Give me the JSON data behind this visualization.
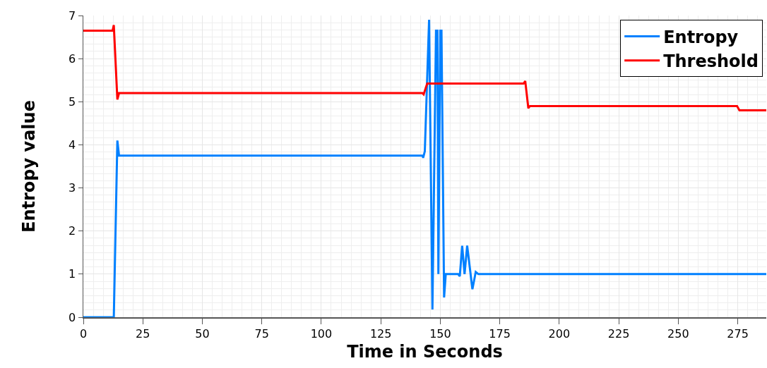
{
  "chart_data": {
    "type": "line",
    "xlabel": "Time in Seconds",
    "ylabel": "Entropy value",
    "series": [
      {
        "name": "Entropy",
        "color": "#0080ff",
        "x": [
          0,
          12.8,
          14.3,
          15,
          142.5,
          142.8,
          143.5,
          145.3,
          146.7,
          148.2,
          148.8,
          149.2,
          150,
          150.5,
          151.6,
          152.3,
          157.5,
          158.2,
          159.2,
          160.2,
          161.3,
          163.5,
          164.9,
          166,
          287
        ],
        "values": [
          0,
          0,
          4.1,
          3.75,
          3.75,
          3.7,
          3.85,
          6.9,
          0.18,
          6.65,
          6.65,
          1.0,
          6.65,
          6.65,
          0.46,
          1.0,
          1.0,
          0.95,
          1.66,
          1.0,
          1.66,
          0.65,
          1.05,
          1.0,
          1.0
        ]
      },
      {
        "name": "Threshold",
        "color": "#ff0000",
        "x": [
          0,
          12.3,
          12.8,
          14.3,
          15,
          142.5,
          143,
          144.5,
          145,
          185,
          185.7,
          187,
          187.7,
          274,
          274.7,
          275.7,
          287
        ],
        "values": [
          6.65,
          6.65,
          6.78,
          5.05,
          5.2,
          5.2,
          5.17,
          5.42,
          5.42,
          5.42,
          5.48,
          4.85,
          4.9,
          4.9,
          4.9,
          4.8,
          4.8
        ]
      }
    ],
    "xlim": [
      0,
      287
    ],
    "xticks": [
      0,
      25,
      50,
      75,
      100,
      125,
      150,
      175,
      200,
      225,
      250,
      275
    ],
    "ylim": [
      0,
      7
    ],
    "yticks": [
      0,
      1,
      2,
      3,
      4,
      5,
      6,
      7
    ],
    "grid": true,
    "legend": "top right",
    "marker": "none",
    "line_style": "solid"
  }
}
